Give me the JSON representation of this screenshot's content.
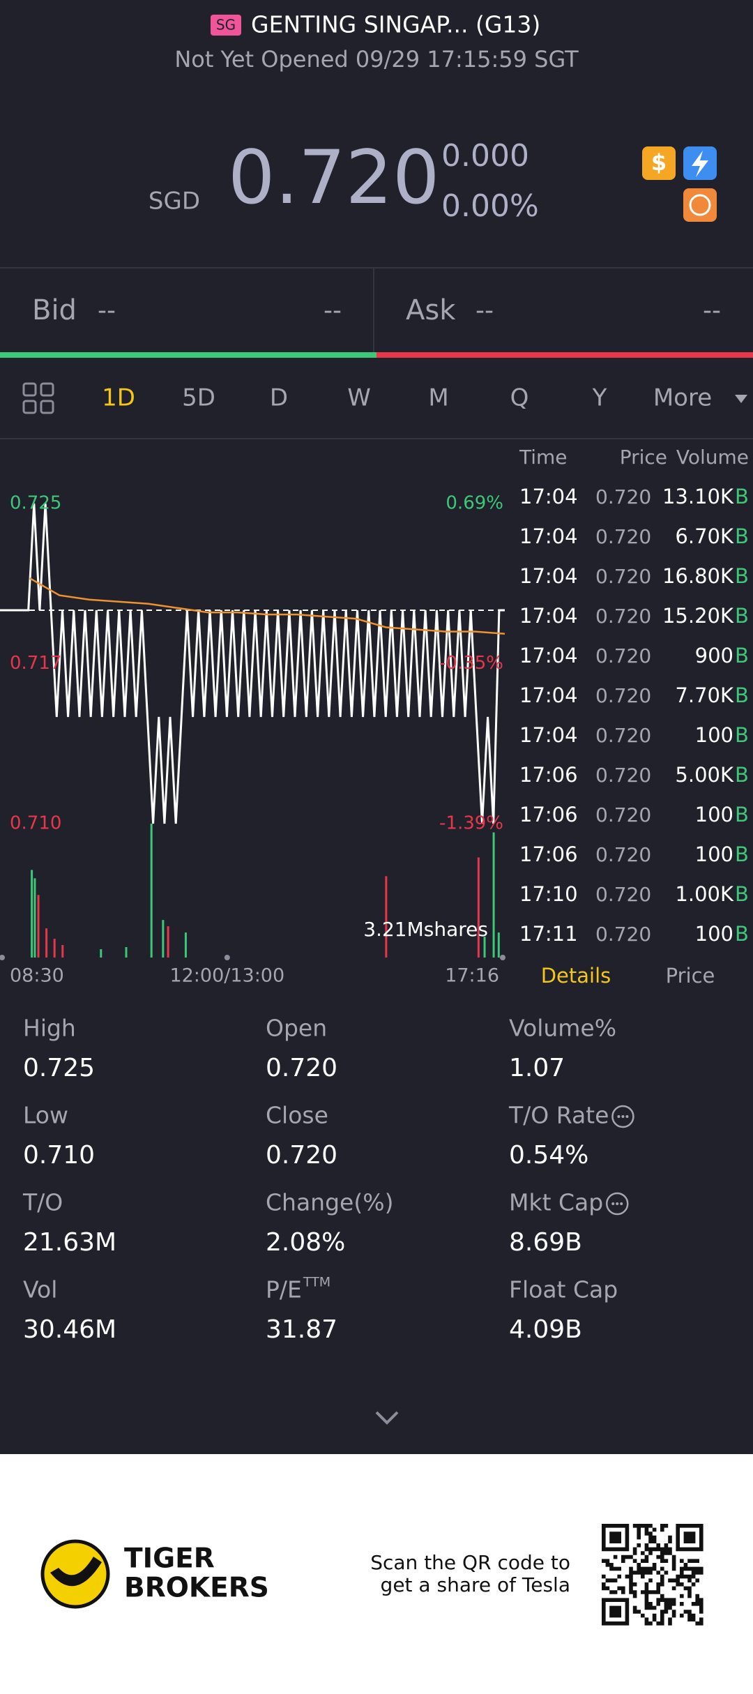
{
  "header": {
    "badge": "SG",
    "title": "GENTING SINGAP... (G13)",
    "status": "Not Yet Opened 09/29 17:15:59 SGT"
  },
  "quote": {
    "currency": "SGD",
    "price": "0.720",
    "change": "0.000",
    "change_pct": "0.00%"
  },
  "bid_ask": {
    "bid_label": "Bid",
    "bid_price": "--",
    "bid_size": "--",
    "ask_label": "Ask",
    "ask_price": "--",
    "ask_size": "--"
  },
  "tabs": [
    "1D",
    "5D",
    "D",
    "W",
    "M",
    "Q",
    "Y",
    "More"
  ],
  "active_tab": 0,
  "chart_data": {
    "type": "line",
    "series": [
      {
        "color": "#ffffff",
        "values": [
          0.72,
          0.72,
          0.72,
          0.72,
          0.72,
          0.72,
          0.725,
          0.72,
          0.725,
          0.72,
          0.715,
          0.72,
          0.715,
          0.72,
          0.715,
          0.72,
          0.715,
          0.72,
          0.715,
          0.72,
          0.715,
          0.72,
          0.715,
          0.72,
          0.715,
          0.72,
          0.715,
          0.71,
          0.715,
          0.71,
          0.715,
          0.71,
          0.715,
          0.72,
          0.715,
          0.72,
          0.715,
          0.72,
          0.715,
          0.72,
          0.715,
          0.72,
          0.715,
          0.72,
          0.715,
          0.72,
          0.715,
          0.72,
          0.715,
          0.72,
          0.715,
          0.72,
          0.715,
          0.72,
          0.715,
          0.72,
          0.715,
          0.72,
          0.715,
          0.72,
          0.715,
          0.72,
          0.715,
          0.72,
          0.715,
          0.72,
          0.715,
          0.72,
          0.715,
          0.72,
          0.715,
          0.72,
          0.715,
          0.72,
          0.715,
          0.72,
          0.715,
          0.72,
          0.715,
          0.72,
          0.715,
          0.72,
          0.715,
          0.72,
          0.715,
          0.71,
          0.715,
          0.71,
          0.72,
          0.72
        ]
      },
      {
        "color": "#f0922e",
        "values": [
          null,
          0.7215,
          0.7207,
          0.7205,
          0.7204,
          0.7203,
          0.7201,
          0.7199,
          0.7199,
          0.7198,
          0.7198,
          0.7197,
          0.7196,
          0.7192,
          0.7191,
          0.719,
          0.719,
          0.7189
        ]
      }
    ],
    "ylim": [
      0.71,
      0.725
    ],
    "yticks": [
      0.725,
      {
        "value": 0.7175,
        "label": "0.717"
      },
      {
        "value": 0.71,
        "label": "0.710"
      }
    ],
    "y2lim": [
      -1.39,
      0.69
    ],
    "y2ticks": [
      {
        "value": 0.69,
        "label": "0.69%"
      },
      {
        "value": -0.35,
        "label": "-0.35%"
      },
      {
        "value": -1.39,
        "label": "-1.39%"
      }
    ],
    "reference_line": 0.72,
    "xlim": [
      0,
      100
    ],
    "xticks": [
      {
        "value": 0,
        "label": "08:30"
      },
      {
        "value": 45,
        "label": "12:00/13:00"
      },
      {
        "value": 100,
        "label": "17:16"
      }
    ],
    "volume": {
      "x": [
        6.3,
        6.9,
        7.6,
        9.2,
        10.8,
        12.4,
        20,
        25,
        30,
        32.3,
        33.3,
        36.8,
        76.5,
        94.8,
        96,
        97.8,
        98.8
      ],
      "values": [
        2.1,
        1.9,
        1.5,
        0.7,
        0.45,
        0.3,
        0.2,
        0.25,
        3.21,
        0.9,
        0.75,
        0.6,
        1.95,
        2.4,
        0.5,
        3.0,
        0.6
      ],
      "colors": [
        "#3cc878",
        "#3cc878",
        "#e8374a",
        "#e8374a",
        "#e8374a",
        "#e8374a",
        "#3cc878",
        "#3cc878",
        "#3cc878",
        "#3cc878",
        "#e8374a",
        "#3cc878",
        "#e8374a",
        "#e8374a",
        "#3cc878",
        "#3cc878",
        "#3cc878"
      ],
      "ylim": [
        0,
        3.21
      ],
      "max_label": "3.21Mshares"
    }
  },
  "trades": {
    "columns": [
      "Time",
      "Price",
      "Volume"
    ],
    "rows": [
      [
        "17:04",
        "0.720",
        "13.10K",
        "B"
      ],
      [
        "17:04",
        "0.720",
        "6.70K",
        "B"
      ],
      [
        "17:04",
        "0.720",
        "16.80K",
        "B"
      ],
      [
        "17:04",
        "0.720",
        "15.20K",
        "B"
      ],
      [
        "17:04",
        "0.720",
        "900",
        "B"
      ],
      [
        "17:04",
        "0.720",
        "7.70K",
        "B"
      ],
      [
        "17:04",
        "0.720",
        "100",
        "B"
      ],
      [
        "17:06",
        "0.720",
        "5.00K",
        "B"
      ],
      [
        "17:06",
        "0.720",
        "100",
        "B"
      ],
      [
        "17:06",
        "0.720",
        "100",
        "B"
      ],
      [
        "17:10",
        "0.720",
        "1.00K",
        "B"
      ],
      [
        "17:11",
        "0.720",
        "100",
        "B"
      ]
    ]
  },
  "detail_tabs": [
    "Details",
    "Price"
  ],
  "stats": [
    {
      "label": "High",
      "value": "0.725"
    },
    {
      "label": "Open",
      "value": "0.720"
    },
    {
      "label": "Volume%",
      "value": "1.07"
    },
    {
      "label": "Low",
      "value": "0.710"
    },
    {
      "label": "Close",
      "value": "0.720"
    },
    {
      "label": "T/O Rate",
      "value": "0.54%",
      "info": true
    },
    {
      "label": "T/O",
      "value": "21.63M"
    },
    {
      "label": "Change(%)",
      "value": "2.08%"
    },
    {
      "label": "Mkt Cap",
      "value": "8.69B",
      "info": true
    },
    {
      "label": "Vol",
      "value": "30.46M"
    },
    {
      "label": "P/E",
      "sup": "TTM",
      "value": "31.87"
    },
    {
      "label": "Float Cap",
      "value": "4.09B"
    }
  ],
  "footer": {
    "brand": [
      "TIGER",
      "BROKERS"
    ],
    "cta": [
      "Scan the QR code to",
      "get a share of Tesla"
    ]
  }
}
